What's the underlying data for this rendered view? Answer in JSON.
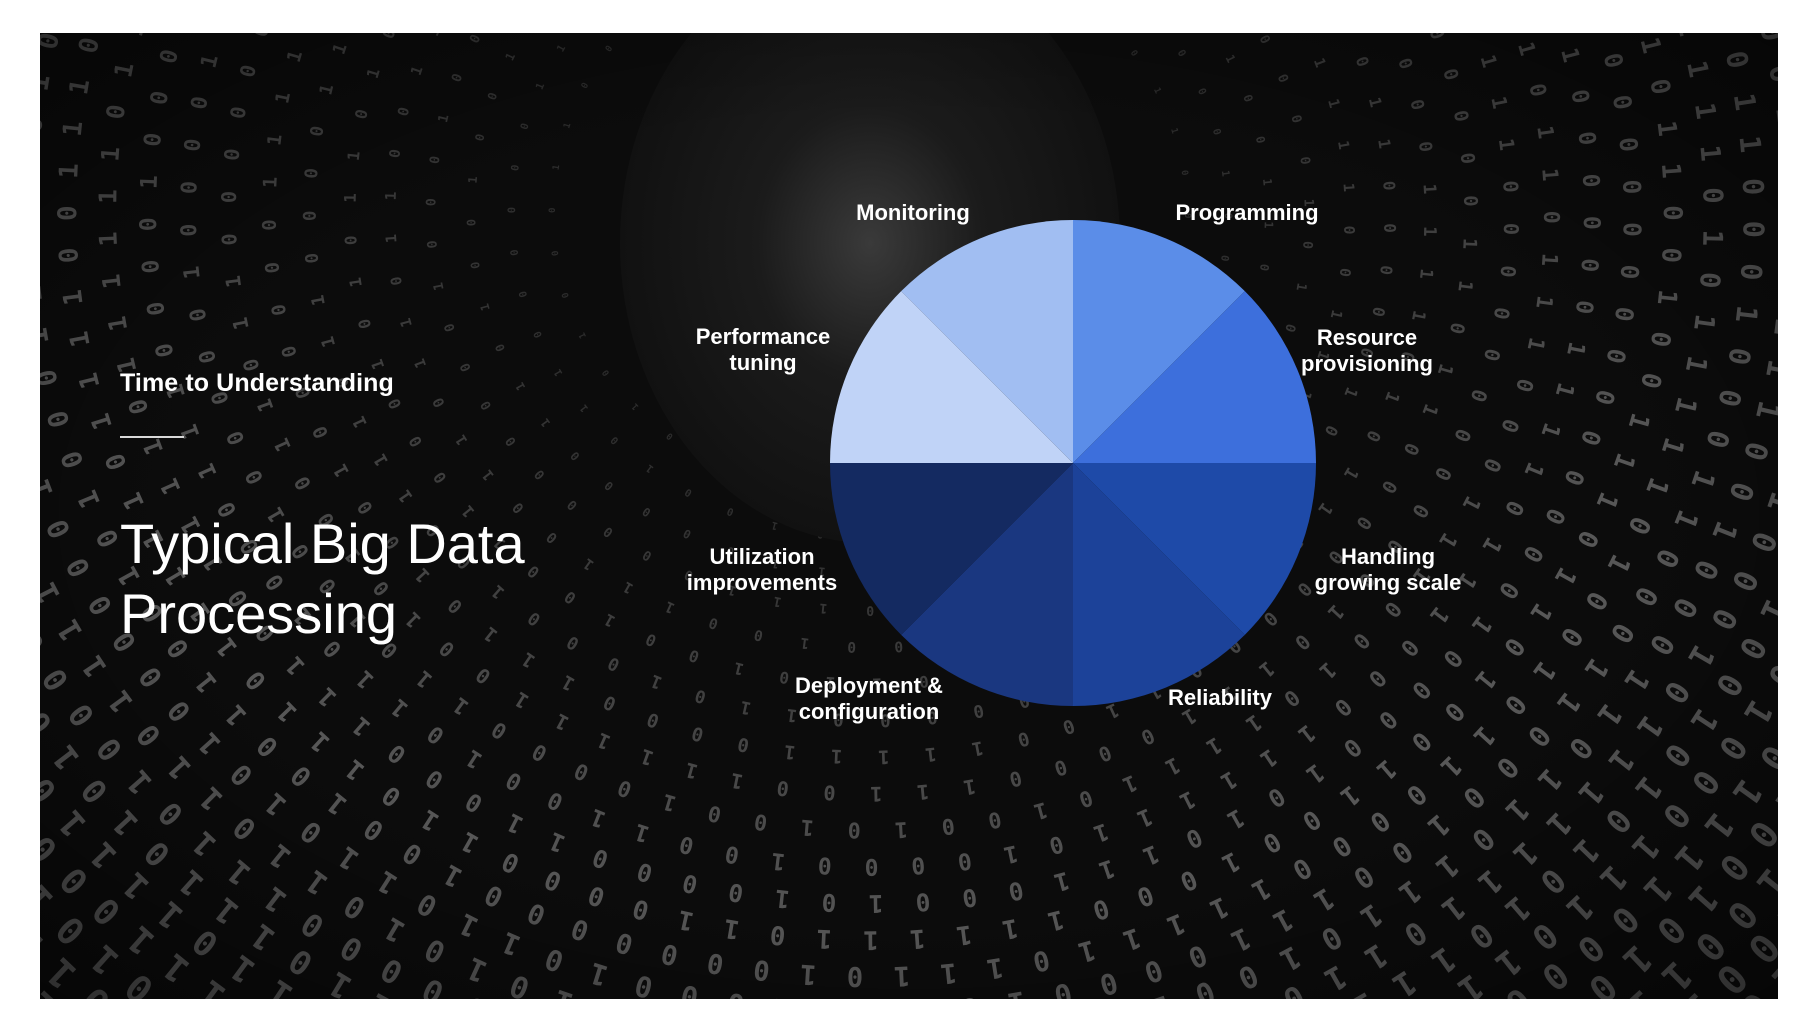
{
  "slide": {
    "eyebrow": "Time to Understanding",
    "title_lines": [
      "Typical Big Data",
      "Processing"
    ]
  },
  "background": {
    "glyphs": [
      "0",
      "1"
    ],
    "colors": {
      "base": "#0c0c0c",
      "glyph": "#8a8a8a",
      "tunnel": "#1e1e1e"
    }
  },
  "chart_data": {
    "type": "pie",
    "title": "",
    "start_angle_deg": 0,
    "direction": "clockwise",
    "slices": [
      {
        "label_lines": [
          "Programming"
        ],
        "value": 1,
        "color": "#5b8de8"
      },
      {
        "label_lines": [
          "Resource",
          "provisioning"
        ],
        "value": 1,
        "color": "#3d6fdc"
      },
      {
        "label_lines": [
          "Handling",
          "growing scale"
        ],
        "value": 1,
        "color": "#1e4aa8"
      },
      {
        "label_lines": [
          "Reliability"
        ],
        "value": 1,
        "color": "#1c4299"
      },
      {
        "label_lines": [
          "Deployment &",
          "configuration"
        ],
        "value": 1,
        "color": "#1a3780"
      },
      {
        "label_lines": [
          "Utilization",
          "improvements"
        ],
        "value": 1,
        "color": "#142a61"
      },
      {
        "label_lines": [
          "Performance",
          "tuning"
        ],
        "value": 1,
        "color": "#c0d3f7"
      },
      {
        "label_lines": [
          "Monitoring"
        ],
        "value": 1,
        "color": "#a1bef2"
      }
    ]
  }
}
